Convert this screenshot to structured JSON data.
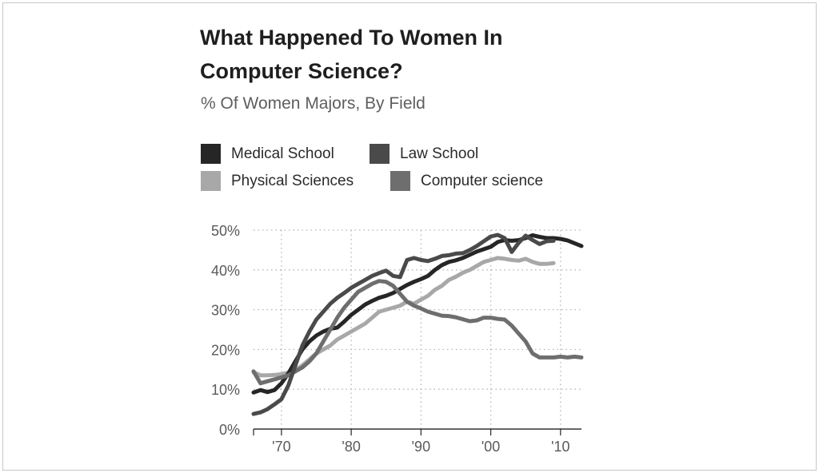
{
  "chart_data": {
    "type": "line",
    "title_lines": [
      "What Happened To Women In",
      "Computer Science?"
    ],
    "subtitle": "% Of Women Majors, By Field",
    "xlabel": "",
    "ylabel": "",
    "xlim": [
      1966,
      2013
    ],
    "ylim": [
      0,
      50
    ],
    "yticks": [
      0,
      10,
      20,
      30,
      40,
      50
    ],
    "ytick_labels": [
      "0%",
      "10%",
      "20%",
      "30%",
      "40%",
      "50%"
    ],
    "xticks": [
      1970,
      1980,
      1990,
      2000,
      2010
    ],
    "xtick_labels": [
      "'70",
      "'80",
      "'90",
      "'00",
      "'10"
    ],
    "grid": true,
    "legend_position": "top",
    "series": [
      {
        "name": "Medical School",
        "color": "#262626",
        "x": [
          1966,
          1967,
          1968,
          1969,
          1970,
          1971,
          1972,
          1973,
          1974,
          1975,
          1976,
          1977,
          1978,
          1979,
          1980,
          1981,
          1982,
          1983,
          1984,
          1985,
          1986,
          1987,
          1988,
          1989,
          1990,
          1991,
          1992,
          1993,
          1994,
          1995,
          1996,
          1997,
          1998,
          1999,
          2000,
          2001,
          2002,
          2003,
          2004,
          2005,
          2006,
          2007,
          2008,
          2009,
          2010,
          2011,
          2012,
          2013
        ],
        "y": [
          9.2,
          9.8,
          9.3,
          9.8,
          11.5,
          14,
          17,
          20,
          22,
          23.5,
          24.5,
          25.2,
          25.5,
          27,
          28.7,
          30,
          31.3,
          32.2,
          33,
          33.5,
          34.2,
          35.2,
          36.2,
          37,
          37.7,
          38.5,
          40,
          41.2,
          42,
          42.4,
          43,
          43.8,
          44.6,
          45.2,
          45.8,
          47,
          47.5,
          47.3,
          47.5,
          48,
          48.7,
          48.3,
          48,
          48,
          47.8,
          47.4,
          46.7,
          46
        ]
      },
      {
        "name": "Law School",
        "color": "#4a4a4a",
        "x": [
          1966,
          1967,
          1968,
          1969,
          1970,
          1971,
          1972,
          1973,
          1974,
          1975,
          1976,
          1977,
          1978,
          1979,
          1980,
          1981,
          1982,
          1983,
          1984,
          1985,
          1986,
          1987,
          1988,
          1989,
          1990,
          1991,
          1992,
          1993,
          1994,
          1995,
          1996,
          1997,
          1998,
          1999,
          2000,
          2001,
          2002,
          2003,
          2004,
          2005,
          2006,
          2007,
          2008,
          2009
        ],
        "y": [
          3.8,
          4.2,
          5,
          6.2,
          7.5,
          11,
          16,
          21,
          24.5,
          27.5,
          29.5,
          31.5,
          33,
          34.2,
          35.5,
          36.5,
          37.5,
          38.5,
          39.2,
          39.8,
          38.5,
          38.2,
          42.5,
          43,
          42.5,
          42.2,
          42.8,
          43.5,
          43.7,
          44.1,
          44.2,
          45,
          46,
          47.2,
          48.4,
          48.8,
          48,
          44.5,
          46.8,
          48.6,
          47.5,
          46.5,
          47.2,
          47.3
        ]
      },
      {
        "name": "Physical Sciences",
        "color": "#a8a8a8",
        "x": [
          1966,
          1967,
          1968,
          1969,
          1970,
          1971,
          1972,
          1973,
          1974,
          1975,
          1976,
          1977,
          1978,
          1979,
          1980,
          1981,
          1982,
          1983,
          1984,
          1985,
          1986,
          1987,
          1988,
          1989,
          1990,
          1991,
          1992,
          1993,
          1994,
          1995,
          1996,
          1997,
          1998,
          1999,
          2000,
          2001,
          2002,
          2003,
          2004,
          2005,
          2006,
          2007,
          2008,
          2009
        ],
        "y": [
          14.3,
          13.5,
          13.5,
          13.6,
          13.8,
          14.2,
          14.8,
          16,
          17.5,
          19,
          20,
          21,
          22.5,
          23.5,
          24.5,
          25.5,
          26.5,
          28,
          29.5,
          30,
          30.5,
          31,
          32,
          31.5,
          32.5,
          33.5,
          35,
          36,
          37.5,
          38.3,
          39.3,
          40,
          41,
          42,
          42.5,
          43,
          42.8,
          42.5,
          42.3,
          42.8,
          42,
          41.5,
          41.5,
          41.7
        ]
      },
      {
        "name": "Computer science",
        "color": "#6e6e6e",
        "x": [
          1966,
          1967,
          1968,
          1969,
          1970,
          1971,
          1972,
          1973,
          1974,
          1975,
          1976,
          1977,
          1978,
          1979,
          1980,
          1981,
          1982,
          1983,
          1984,
          1985,
          1986,
          1987,
          1988,
          1989,
          1990,
          1991,
          1992,
          1993,
          1994,
          1995,
          1996,
          1997,
          1998,
          1999,
          2000,
          2001,
          2002,
          2003,
          2004,
          2005,
          2006,
          2007,
          2008,
          2009,
          2010,
          2011,
          2012,
          2013
        ],
        "y": [
          14.5,
          11.5,
          12,
          12.5,
          13,
          13.5,
          14.5,
          15.5,
          17,
          19,
          22,
          25,
          28,
          30.5,
          32.5,
          34.5,
          35.5,
          36.5,
          37.2,
          37,
          36,
          34,
          32,
          31,
          30.3,
          29.5,
          29,
          28.5,
          28.4,
          28.1,
          27.6,
          27.1,
          27.3,
          28,
          28,
          27.7,
          27.5,
          26,
          24,
          22,
          19,
          18,
          18,
          18,
          18.2,
          18,
          18.2,
          18
        ]
      }
    ]
  }
}
